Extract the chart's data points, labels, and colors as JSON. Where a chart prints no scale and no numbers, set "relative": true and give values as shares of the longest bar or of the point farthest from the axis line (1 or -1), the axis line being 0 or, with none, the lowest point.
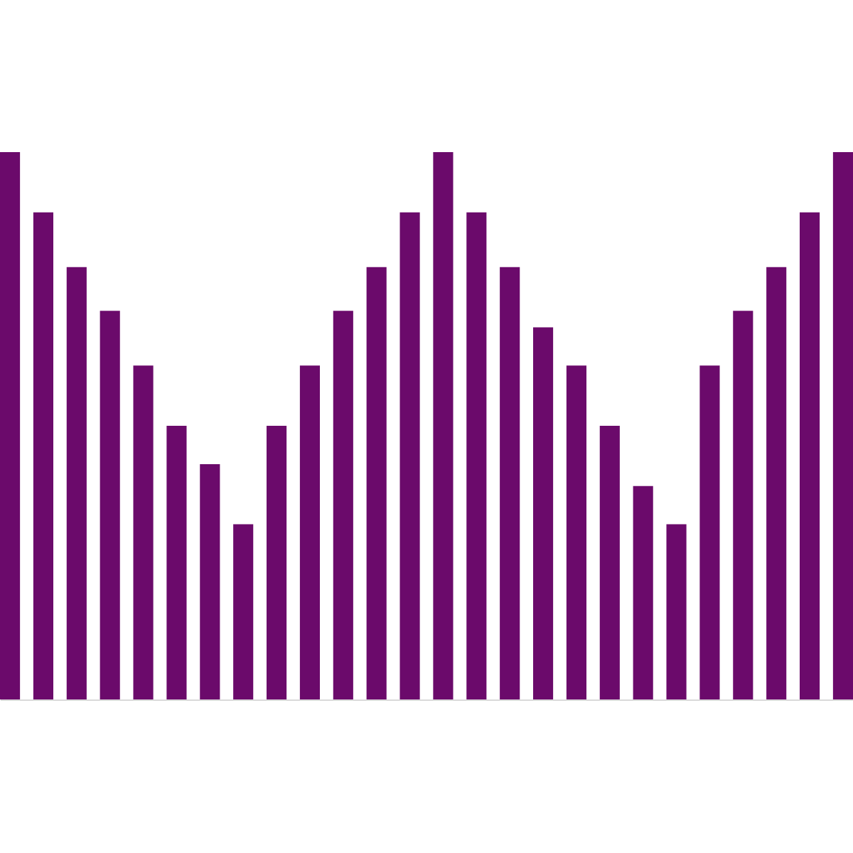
{
  "chart_data": {
    "type": "bar",
    "relative": true,
    "color": "#6b0a6b",
    "categories": [
      null,
      null,
      null,
      null,
      null,
      null,
      null,
      null,
      null,
      null,
      null,
      null,
      null,
      null,
      null,
      null,
      null,
      null,
      null,
      null,
      null,
      null,
      null,
      null,
      null,
      null
    ],
    "values": [
      1,
      0.89,
      0.79,
      0.71,
      0.61,
      0.5,
      0.43,
      0.32,
      0.5,
      0.61,
      0.71,
      0.79,
      0.89,
      1,
      0.89,
      0.79,
      0.68,
      0.61,
      0.5,
      0.39,
      0.32,
      0.61,
      0.71,
      0.79,
      0.89,
      1
    ]
  }
}
